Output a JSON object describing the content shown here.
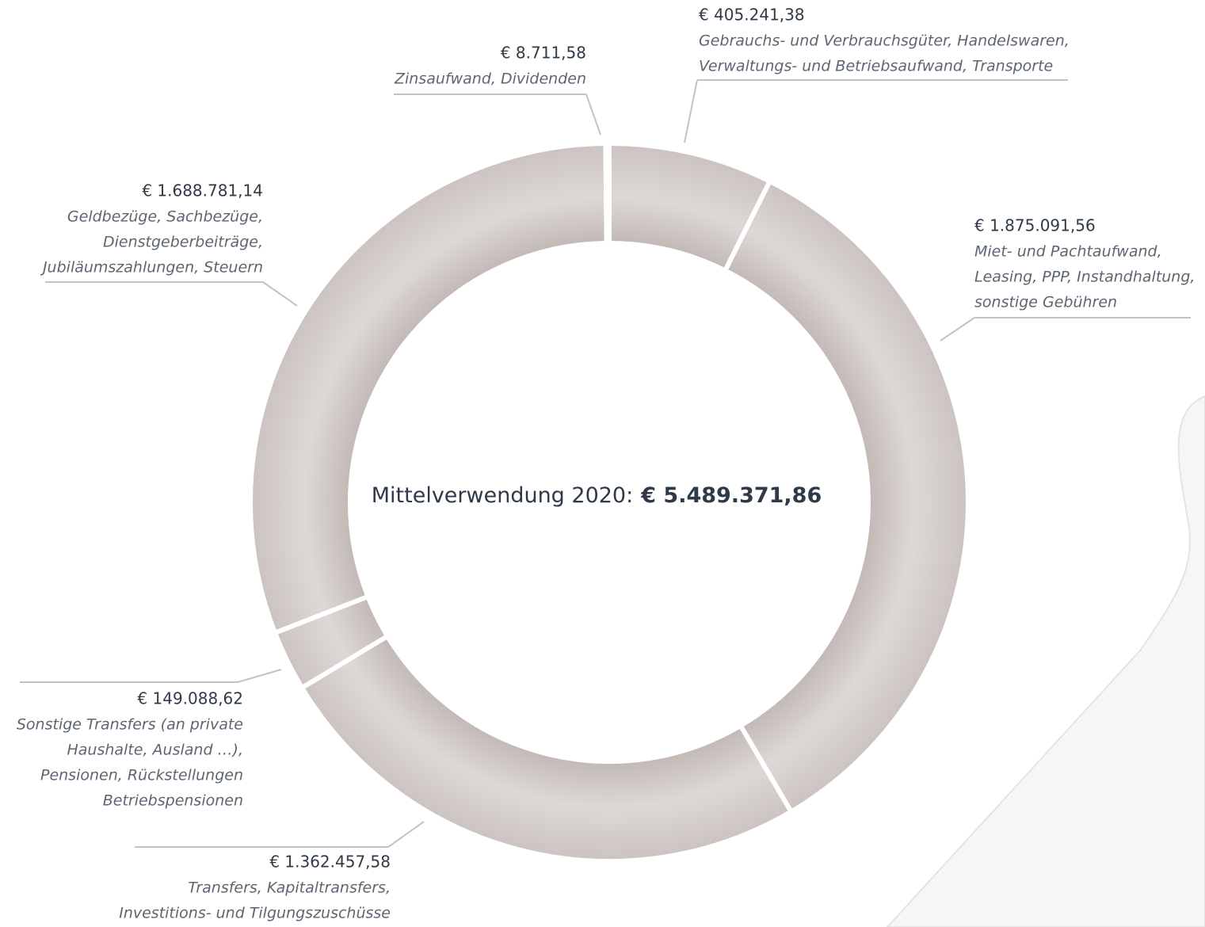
{
  "chart_data": {
    "type": "donut",
    "center_label": "Mittelverwendung 2020:",
    "total_label": "€ 5.489.371,86",
    "color": "#cdc5c2",
    "values": [
      405241.38,
      1875091.56,
      1362457.58,
      149088.62,
      1688781.14,
      8711.58
    ],
    "value_labels": [
      "€ 405.241,38",
      "€ 1.875.091,56",
      "€ 1.362.457,58",
      "€ 149.088,62",
      "€ 1.688.781,14",
      "€ 8.711,58"
    ],
    "categories": [
      [
        "Gebrauchs- und Verbrauchsgüter, Handelswaren,",
        "Verwaltungs- und Betriebsaufwand, Transporte"
      ],
      [
        "Miet- und Pachtaufwand,",
        "Leasing, PPP, Instandhaltung,",
        "sonstige Gebühren"
      ],
      [
        "Transfers, Kapitaltransfers,",
        "Investitions- und Tilgungszuschüsse"
      ],
      [
        "Sonstige Transfers (an private",
        "Haushalte, Ausland …),",
        "Pensionen, Rückstellungen",
        "Betriebspensionen"
      ],
      [
        "Geldbezüge, Sachbezüge,",
        "Dienstgeberbeiträge,",
        "Jubiläumszahlungen, Steuern"
      ],
      [
        "Zinsaufwand, Dividenden"
      ]
    ]
  }
}
